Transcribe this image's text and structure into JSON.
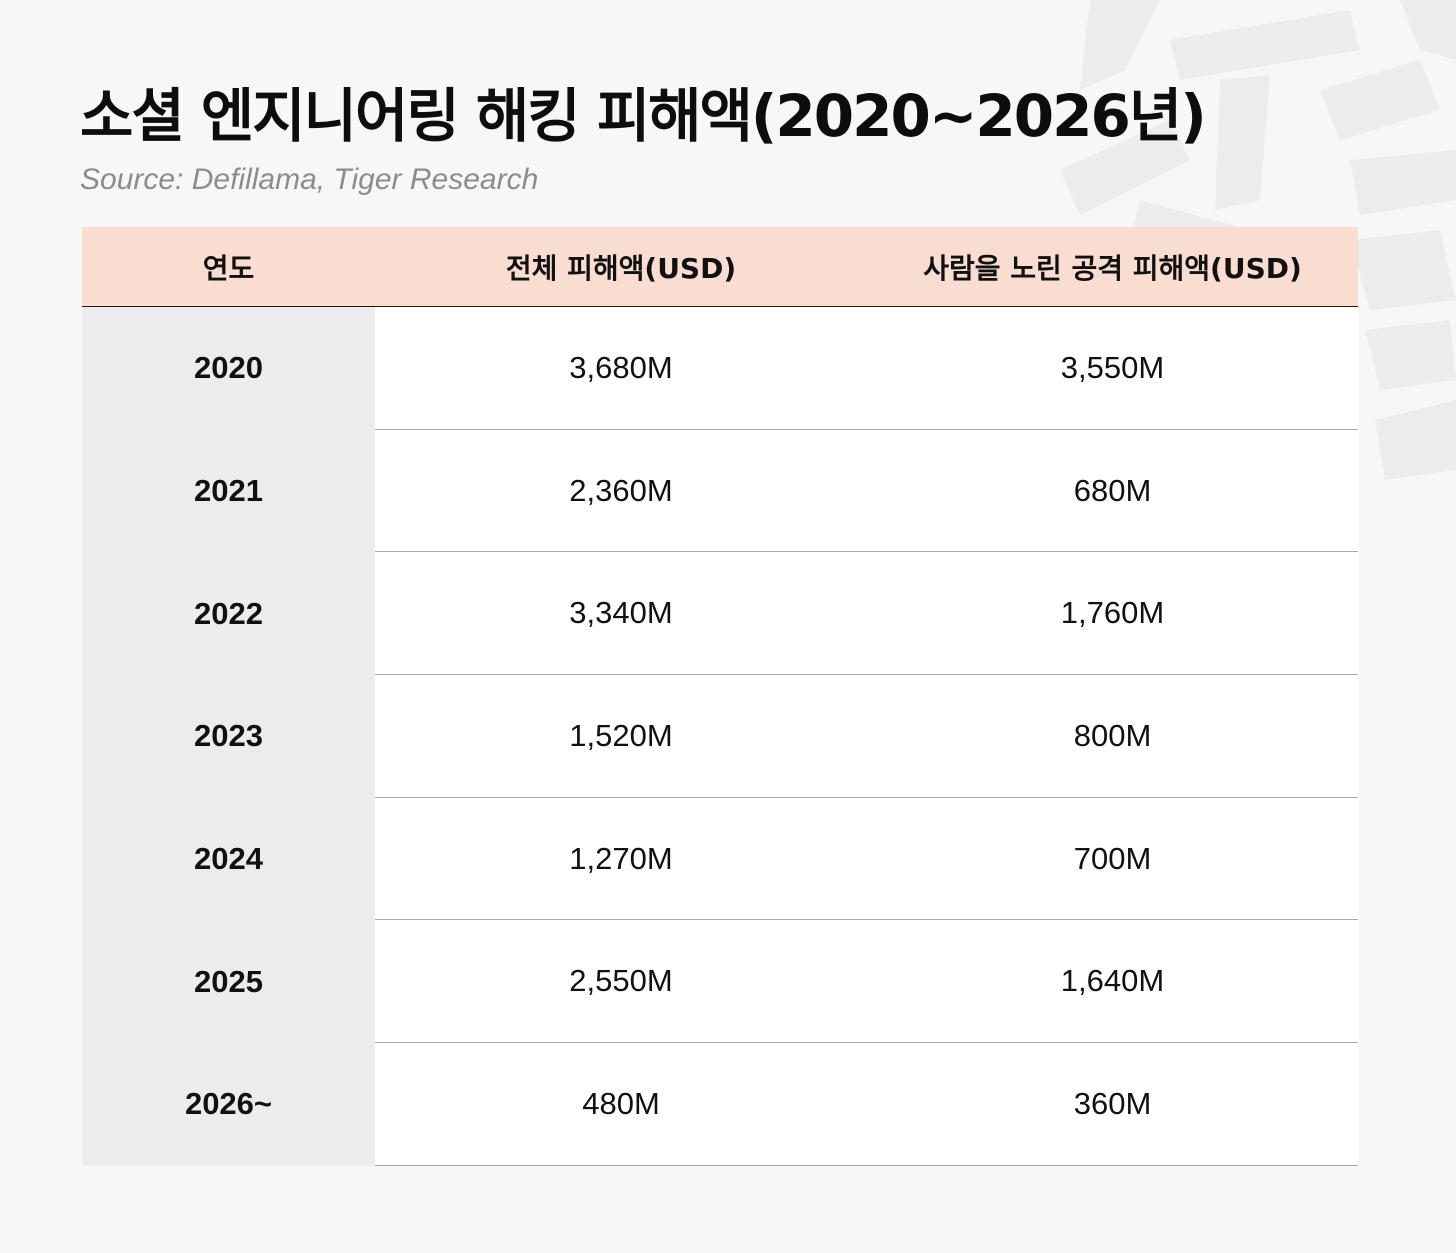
{
  "title": "소셜 엔지니어링 해킹 피해액(2020~2026년)",
  "source": "Source: Defillama, Tiger Research",
  "table": {
    "headers": [
      "연도",
      "전체 피해액(USD)",
      "사람을 노린 공격 피해액(USD)"
    ],
    "rows": [
      {
        "year": "2020",
        "total": "3,680M",
        "human": "3,550M"
      },
      {
        "year": "2021",
        "total": "2,360M",
        "human": "680M"
      },
      {
        "year": "2022",
        "total": "3,340M",
        "human": "1,760M"
      },
      {
        "year": "2023",
        "total": "1,520M",
        "human": "800M"
      },
      {
        "year": "2024",
        "total": "1,270M",
        "human": "700M"
      },
      {
        "year": "2025",
        "total": "2,550M",
        "human": "1,640M"
      },
      {
        "year": "2026~",
        "total": "480M",
        "human": "360M"
      }
    ]
  },
  "colors": {
    "background": "#f7f7f7",
    "header_bg": "#f9ddd1",
    "year_column_bg": "#ececec",
    "cell_bg": "#ffffff",
    "row_divider": "#a9a9a9"
  },
  "icons": {
    "watermark": "tiger-watermark-icon"
  }
}
